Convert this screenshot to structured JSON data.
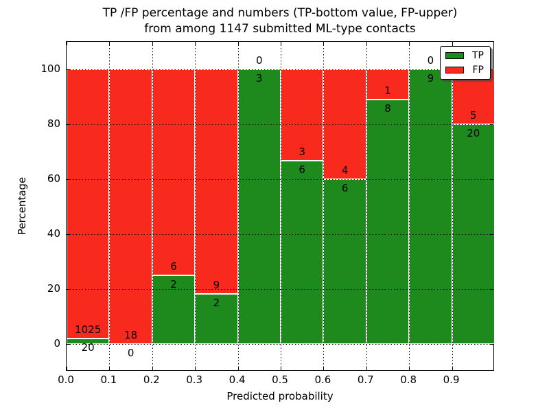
{
  "title": {
    "line1": "TP /FP percentage and numbers (TP-bottom value, FP-upper)",
    "line2": "from among 1147 submitted ML-type contacts"
  },
  "axes": {
    "x_label": "Predicted probability",
    "y_label": "Percentage",
    "x_tick_labels": [
      "0.0",
      "0.1",
      "0.2",
      "0.3",
      "0.4",
      "0.5",
      "0.6",
      "0.7",
      "0.8",
      "0.9"
    ],
    "y_tick_labels": [
      "0",
      "20",
      "40",
      "60",
      "80",
      "100"
    ],
    "y_tick_values": [
      0,
      20,
      40,
      60,
      80,
      100
    ],
    "xlim": [
      0.0,
      1.0
    ],
    "ylim": [
      -10,
      110
    ],
    "grid_style": "dotted"
  },
  "legend": {
    "position": "upper right",
    "items": [
      {
        "label": "TP",
        "color": "#1e8a1e"
      },
      {
        "label": "FP",
        "color": "#f8291d"
      }
    ]
  },
  "chart_data": {
    "type": "bar",
    "stacked": true,
    "units": "percent",
    "title": "TP /FP percentage and numbers (TP-bottom value, FP-upper) from among 1147 submitted ML-type contacts",
    "xlabel": "Predicted probability",
    "ylabel": "Percentage",
    "total_contacts": 1147,
    "bin_width": 0.1,
    "categories": [
      "0.0-0.1",
      "0.1-0.2",
      "0.2-0.3",
      "0.3-0.4",
      "0.4-0.5",
      "0.5-0.6",
      "0.6-0.7",
      "0.7-0.8",
      "0.8-0.9",
      "0.9-1.0"
    ],
    "series": [
      {
        "name": "TP",
        "color": "#1e8a1e",
        "counts": [
          20,
          0,
          2,
          2,
          3,
          6,
          6,
          8,
          9,
          20
        ],
        "percentages": [
          1.91,
          0,
          25,
          18.18,
          100,
          66.67,
          60,
          88.89,
          100,
          80
        ]
      },
      {
        "name": "FP",
        "color": "#f8291d",
        "counts": [
          1025,
          18,
          6,
          9,
          0,
          3,
          4,
          1,
          0,
          5
        ],
        "percentages": [
          98.09,
          100,
          75,
          81.82,
          0,
          33.33,
          40,
          11.11,
          0,
          20
        ]
      }
    ],
    "label_convention": "TP count below segment boundary, FP count above segment boundary"
  }
}
